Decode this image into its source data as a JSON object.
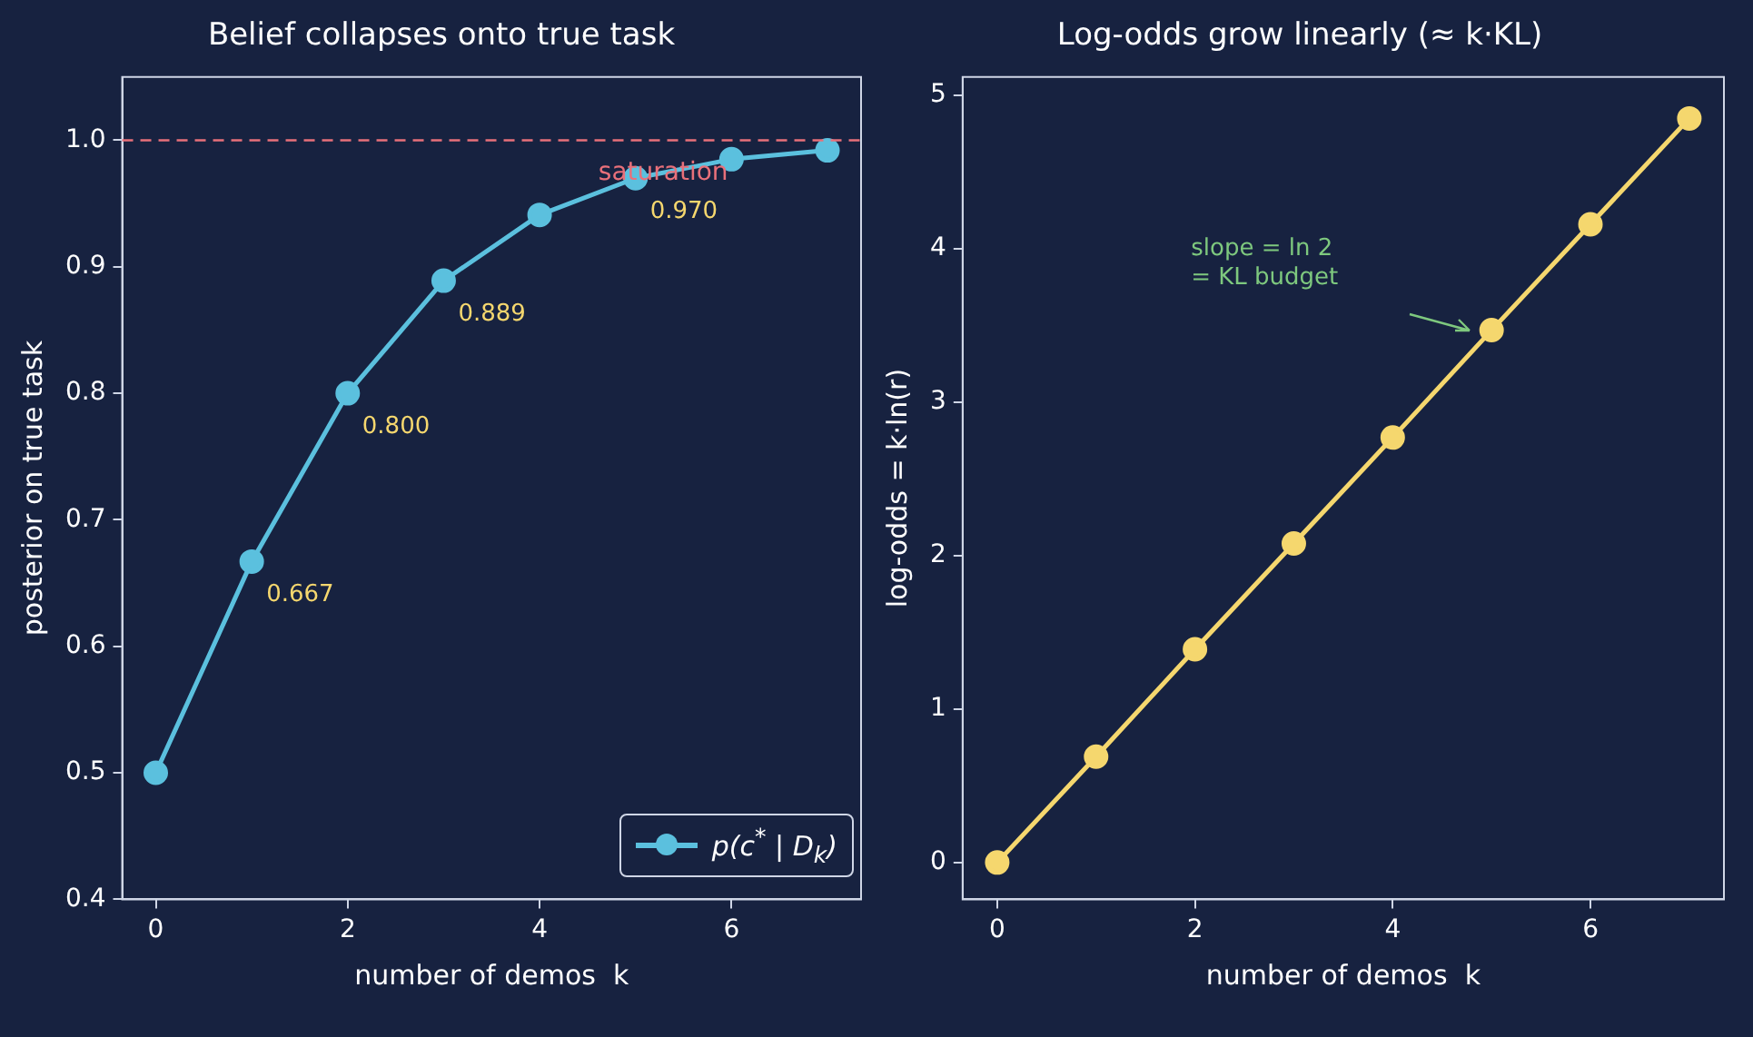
{
  "chart_data": [
    {
      "type": "line",
      "title": "Belief collapses onto true task",
      "xlabel": "number of demos  k",
      "ylabel": "posterior on true task",
      "x": [
        0,
        1,
        2,
        3,
        4,
        5,
        6,
        7
      ],
      "xlim": [
        -0.35,
        7.35
      ],
      "xticks": [
        0,
        2,
        4,
        6
      ],
      "ylim": [
        0.4,
        1.05
      ],
      "yticks": [
        0.4,
        0.5,
        0.6,
        0.7,
        0.8,
        0.9,
        {
          "value": 1.0,
          "label": "1.0"
        }
      ],
      "marker": "circle",
      "legend": "bottom right",
      "series": [
        {
          "name": "p(c$^{*}$ | D$_{k}$)",
          "color": "#5bc0de",
          "values": [
            0.5,
            0.667,
            0.8,
            0.889,
            0.941,
            0.97,
            0.985,
            0.992
          ],
          "value_labels": [
            null,
            "0.667",
            "0.800",
            "0.889",
            null,
            "0.970",
            null,
            null
          ]
        }
      ],
      "ref_lines": [
        {
          "axis": "y",
          "value": 1.0,
          "label": "saturation",
          "color": "#e8707a",
          "line_style": "dashed"
        }
      ]
    },
    {
      "type": "line",
      "title": "Log-odds grow linearly (≈ k·KL)",
      "xlabel": "number of demos  k",
      "ylabel": "log-odds = k·ln(r)",
      "x": [
        0,
        1,
        2,
        3,
        4,
        5,
        6,
        7
      ],
      "xlim": [
        -0.35,
        7.35
      ],
      "xticks": [
        0,
        2,
        4,
        6
      ],
      "ylim": [
        -0.24,
        5.12
      ],
      "yticks": [
        0,
        1,
        2,
        3,
        4,
        5
      ],
      "marker": "circle",
      "series": [
        {
          "color": "#f5d76e",
          "values": [
            0,
            0.69,
            1.39,
            2.08,
            2.77,
            3.47,
            4.16,
            4.85
          ]
        }
      ],
      "annotations": [
        "slope = ln 2\n= KL budget"
      ]
    }
  ]
}
